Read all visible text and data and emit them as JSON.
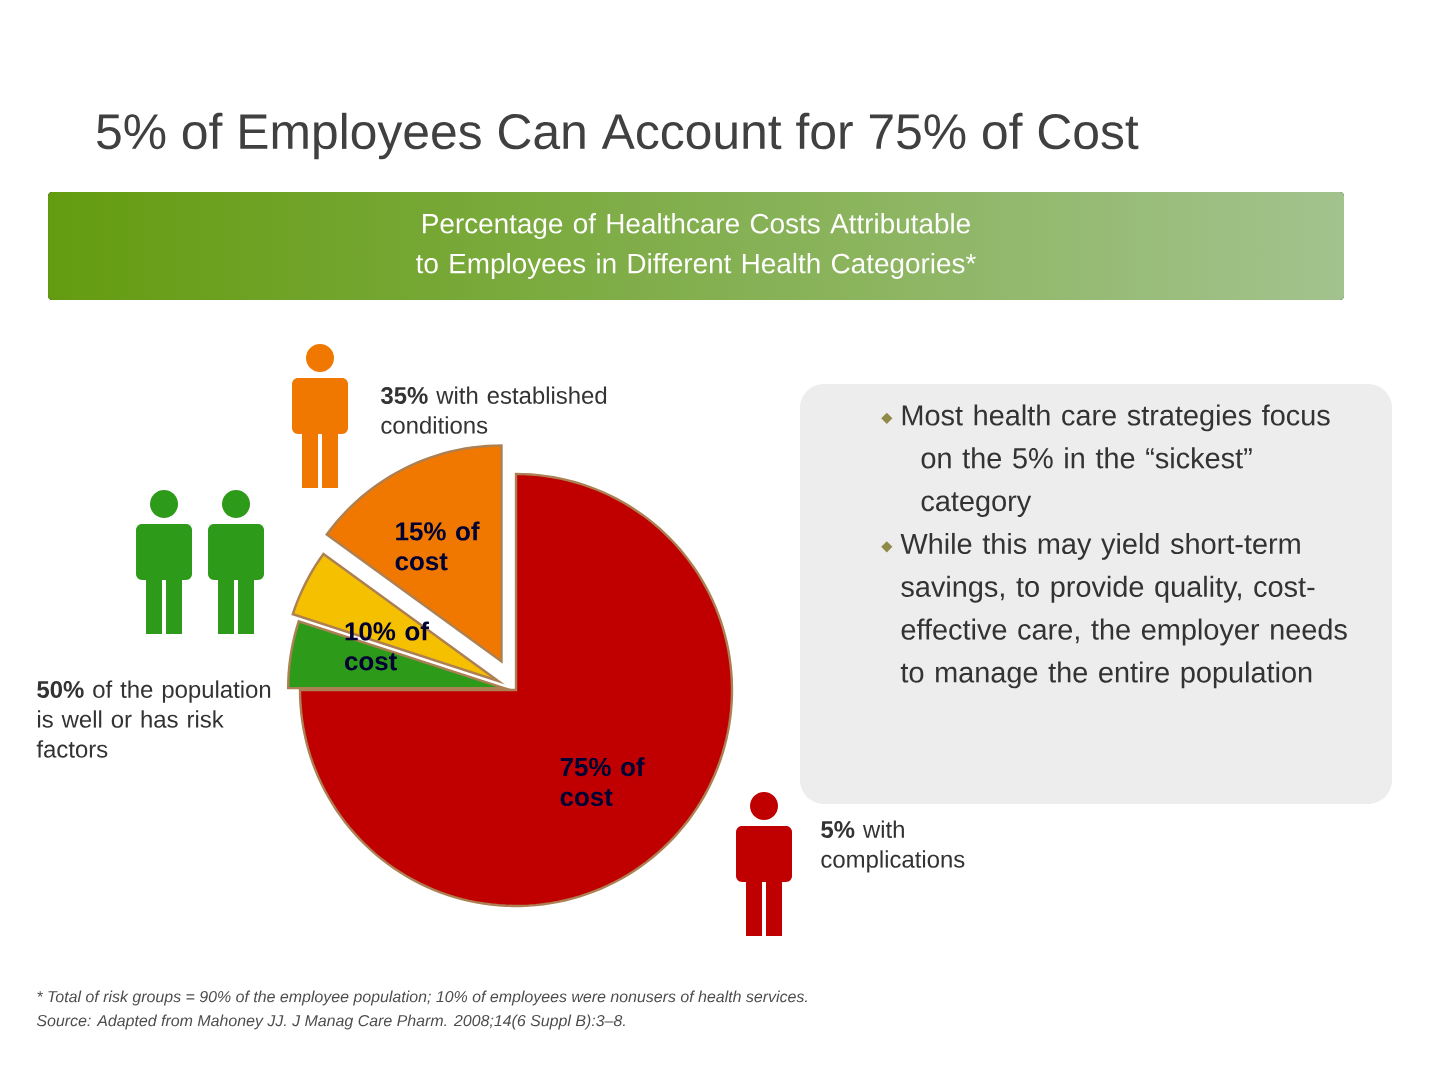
{
  "chart_data": {
    "type": "pie",
    "title": "5% of Employees Can Account for 75% of Cost",
    "subtitle": "Percentage of Healthcare Costs Attributable to Employees in Different Health Categories*",
    "categories": [
      "**35%** with established conditions",
      null,
      "**50%** of the population is well or has risk factors",
      "**5%** with complications"
    ],
    "values": [
      15,
      5,
      5,
      75
    ],
    "colors": [
      "#f07800",
      "#f5c000",
      "#2e9a1a",
      "#c00000"
    ],
    "legend": "top right",
    "value_labels": [
      "15% of cost",
      null,
      null,
      "75% of cost"
    ],
    "annotations": [
      "10% of cost",
      "Most health care strategies focus on the 5% in the “sickest” category",
      "While this may yield short-term savings, to provide quality, cost-effective care, the employer needs to manage the entire population",
      "* Total of risk groups = 90% of the employee population; 10% of employees were nonusers of health services.",
      "Source: Adapted from Mahoney JJ. J Manag Care Pharm. 2008;14(6 Suppl B):3–8."
    ]
  }
}
